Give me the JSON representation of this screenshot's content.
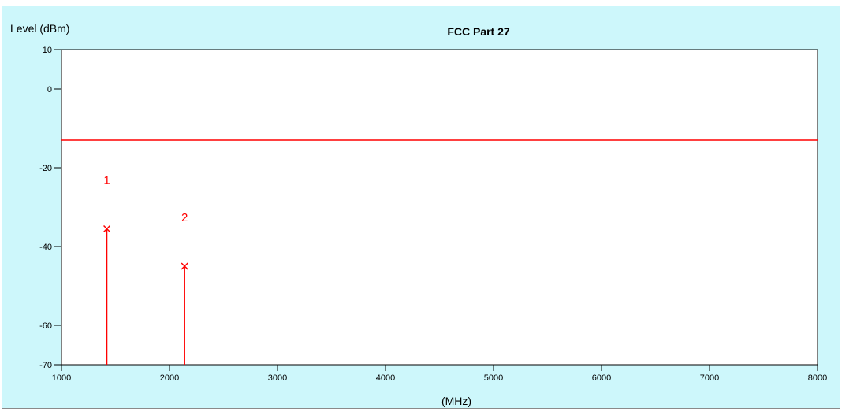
{
  "chart_data": {
    "type": "stem",
    "title": "FCC  Part 27",
    "ylabel": "Level (dBm)",
    "xlabel": "(MHz)",
    "xlim": [
      1000,
      8000
    ],
    "ylim": [
      -70,
      10
    ],
    "x_ticks": [
      1000,
      2000,
      3000,
      4000,
      5000,
      6000,
      7000,
      8000
    ],
    "y_ticks": [
      10,
      0,
      -20,
      -40,
      -60,
      -70
    ],
    "limit_line": {
      "y": -13
    },
    "markers": [
      {
        "label": "1",
        "x": 1420,
        "y": -35.5
      },
      {
        "label": "2",
        "x": 2140,
        "y": -45
      }
    ],
    "grid": false,
    "colors": {
      "limit": "#ff0000",
      "marker": "#ff0000",
      "background": "#cdf7fb",
      "plot": "#ffffff"
    }
  }
}
